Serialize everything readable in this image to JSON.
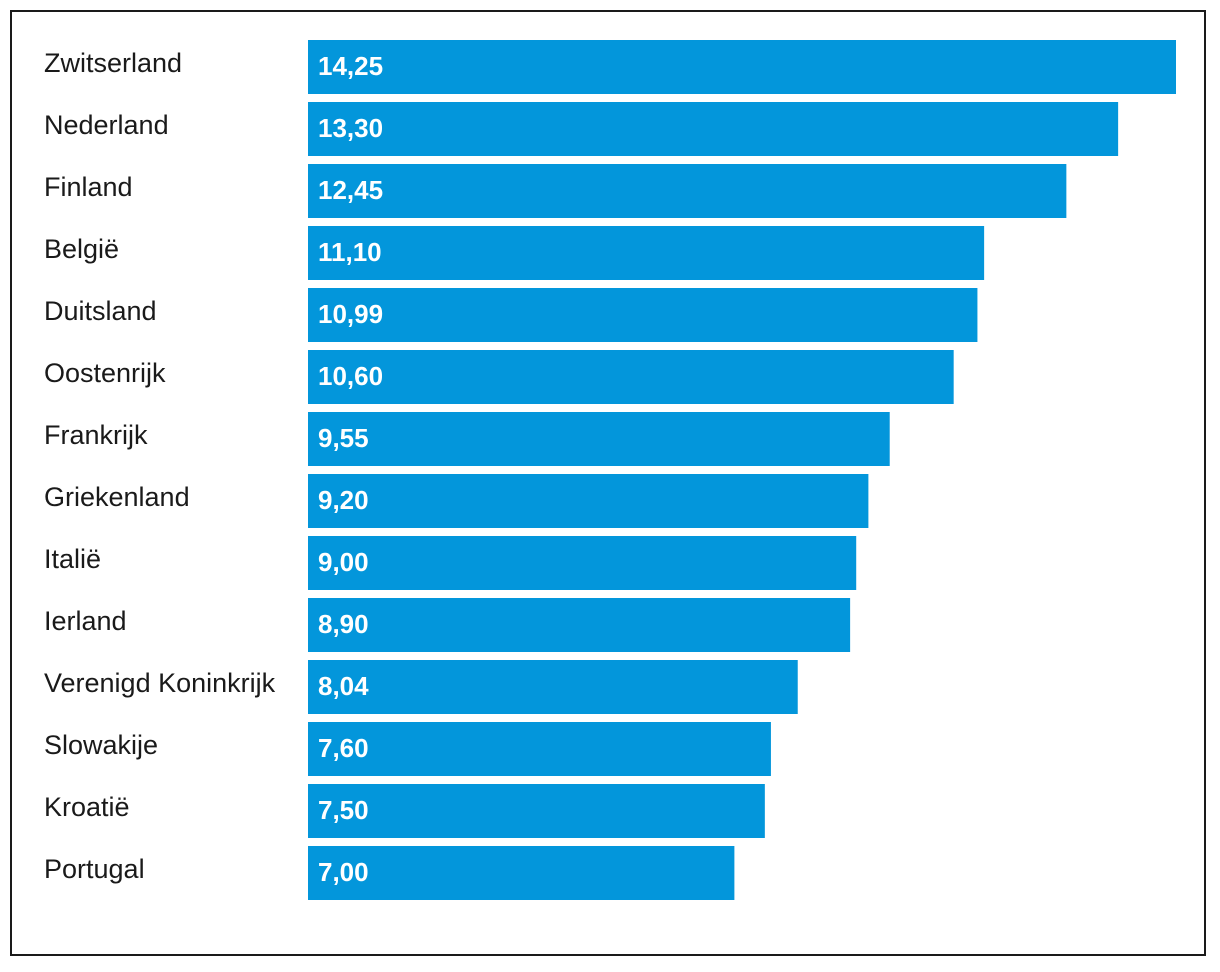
{
  "chart_data": {
    "type": "bar",
    "orientation": "horizontal",
    "categories": [
      "Zwitserland",
      "Nederland",
      "Finland",
      "België",
      "Duitsland",
      "Oostenrijk",
      "Frankrijk",
      "Griekenland",
      "Italië",
      "Ierland",
      "Verenigd Koninkrijk",
      "Slowakije",
      "Kroatië",
      "Portugal"
    ],
    "values": [
      14.25,
      13.3,
      12.45,
      11.1,
      10.99,
      10.6,
      9.55,
      9.2,
      9.0,
      8.9,
      8.04,
      7.6,
      7.5,
      7.0
    ],
    "value_labels": [
      "14,25",
      "13,30",
      "12,45",
      "11,10",
      "10,99",
      "10,60",
      "9,55",
      "9,20",
      "9,00",
      "8,90",
      "8,04",
      "7,60",
      "7,50",
      "7,00"
    ],
    "title": "",
    "xlabel": "",
    "ylabel": "",
    "xlim": [
      0,
      14.25
    ],
    "grid": false,
    "legend": "none",
    "bar_color": "#0396db"
  }
}
